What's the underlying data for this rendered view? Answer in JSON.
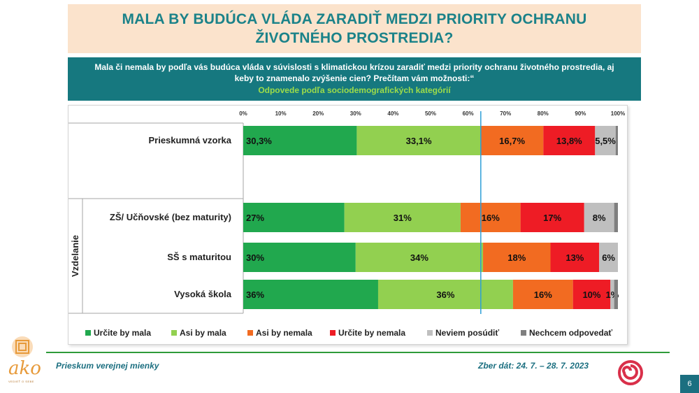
{
  "header": {
    "title": "MALA BY BUDÚCA VLÁDA ZARADIŤ MEDZI PRIORITY OCHRANU ŽIVOTNÉHO PROSTREDIA?",
    "question": "Mala či nemala by podľa vás budúca vláda v súvislosti s klimatickou krízou zaradiť medzi priority ochranu životného prostredia, aj keby to znamenalo zvýšenie cien? Prečítam vám možnosti:“",
    "subtitle": "Odpovede podľa sociodemografických kategórií"
  },
  "chart_data": {
    "type": "bar",
    "orientation": "horizontal-stacked-100",
    "xlim": [
      0,
      100
    ],
    "x_ticks": [
      "0%",
      "10%",
      "20%",
      "30%",
      "40%",
      "50%",
      "60%",
      "70%",
      "80%",
      "90%",
      "100%"
    ],
    "group_label": "Vzdelanie",
    "reference_line_value": 63.4,
    "categories": [
      "Prieskumná vzorka",
      "ZŠ/ Učňovské (bez maturity)",
      "SŠ s maturitou",
      "Vysoká škola"
    ],
    "series": [
      {
        "name": "Určite by mala",
        "color": "#21a84e",
        "values": [
          30.3,
          27,
          30,
          36
        ],
        "labels": [
          "30,3%",
          "27%",
          "30%",
          "36%"
        ]
      },
      {
        "name": "Asi by mala",
        "color": "#92d050",
        "values": [
          33.1,
          31,
          34,
          36
        ],
        "labels": [
          "33,1%",
          "31%",
          "34%",
          "36%"
        ]
      },
      {
        "name": "Asi by nemala",
        "color": "#f26b21",
        "values": [
          16.7,
          16,
          18,
          16
        ],
        "labels": [
          "16,7%",
          "16%",
          "18%",
          "16%"
        ]
      },
      {
        "name": "Určite by nemala",
        "color": "#ee1c25",
        "values": [
          13.8,
          17,
          13,
          10
        ],
        "labels": [
          "13,8%",
          "17%",
          "13%",
          "10%"
        ]
      },
      {
        "name": "Neviem posúdiť",
        "color": "#bfbfbf",
        "values": [
          5.5,
          8,
          6,
          1
        ],
        "labels": [
          "5,5%",
          "8%",
          "6%",
          "1%"
        ]
      },
      {
        "name": "Nechcem odpovedať",
        "color": "#7f7f7f",
        "values": [
          0.6,
          1,
          1,
          1
        ],
        "labels": [
          "",
          "",
          "",
          ""
        ]
      }
    ]
  },
  "footer": {
    "left_text": "Prieskum verejnej mienky",
    "right_text": "Zber dát: 24. 7. – 28. 7. 2023",
    "page_number": "6",
    "logo_text": "ako",
    "logo_tagline": "VEDIEŤ O SEBE"
  }
}
